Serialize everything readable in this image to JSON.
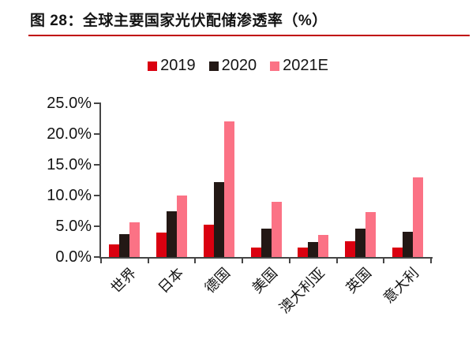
{
  "figure": {
    "title": "图 28：全球主要国家光伏配储渗透率（%）",
    "title_rule_color": "#c00000",
    "background": "#ffffff"
  },
  "chart_data": {
    "type": "bar",
    "title": "全球主要国家光伏配储渗透率（%）",
    "categories": [
      "世界",
      "日本",
      "德国",
      "美国",
      "澳大利亚",
      "英国",
      "意大利"
    ],
    "series": [
      {
        "name": "2019",
        "color": "#da0010",
        "values": [
          2.0,
          4.0,
          5.2,
          1.5,
          1.5,
          2.6,
          1.5
        ]
      },
      {
        "name": "2020",
        "color": "#231815",
        "values": [
          3.7,
          7.5,
          12.2,
          4.6,
          2.5,
          4.6,
          4.1
        ]
      },
      {
        "name": "2021E",
        "color": "#fb7285",
        "values": [
          5.7,
          10.0,
          22.0,
          9.0,
          3.6,
          7.3,
          13.0
        ]
      }
    ],
    "xlabel": "",
    "ylabel": "",
    "unit": "%",
    "ylim": [
      0,
      25
    ],
    "ytick_step": 5,
    "ytick_labels": [
      "0.0%",
      "5.0%",
      "10.0%",
      "15.0%",
      "20.0%",
      "25.0%"
    ],
    "grid": false,
    "legend_position": "top-center",
    "axis_color": "#454545"
  }
}
